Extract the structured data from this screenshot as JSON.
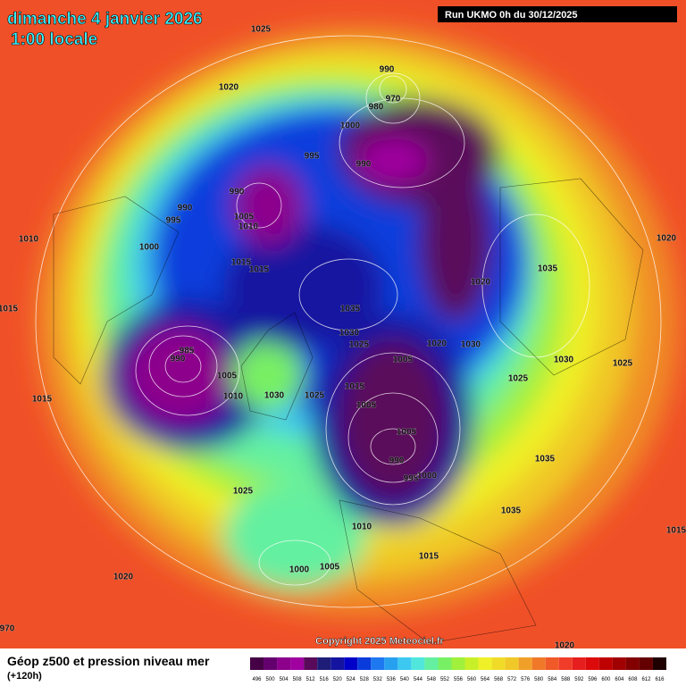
{
  "header": {
    "date": "dimanche 4 janvier 2026",
    "time": "1:00 locale",
    "run": "Run UKMO 0h du 30/12/2025"
  },
  "isobar_labels": [
    "1025",
    "1020",
    "990",
    "970",
    "980",
    "1000",
    "995",
    "990",
    "990",
    "990",
    "995",
    "1005",
    "1010",
    "1010",
    "1000",
    "1015",
    "1015",
    "1035",
    "1020",
    "1015",
    "1020",
    "1035",
    "1030",
    "1025",
    "1020",
    "1030",
    "985",
    "990",
    "1005",
    "1005",
    "1030",
    "1025",
    "1015",
    "1010",
    "1030",
    "1025",
    "1025",
    "1015",
    "1005",
    "1005",
    "1035",
    "990",
    "995",
    "1000",
    "1025",
    "1035",
    "1010",
    "1015",
    "1000",
    "1005",
    "1020",
    "1015",
    "1020",
    "970"
  ],
  "copyright": "Copyright 2025 Meteociel.fr",
  "legend": {
    "title": "Géop z500 et pression niveau mer",
    "lead": "(+120h)",
    "scale": [
      {
        "value": 496,
        "color": "#460046"
      },
      {
        "value": 500,
        "color": "#64006e"
      },
      {
        "value": 504,
        "color": "#8c008c"
      },
      {
        "value": 508,
        "color": "#a000a0"
      },
      {
        "value": 512,
        "color": "#5a0a5a"
      },
      {
        "value": 516,
        "color": "#1e1e78"
      },
      {
        "value": 520,
        "color": "#1414a0"
      },
      {
        "value": 524,
        "color": "#0000c8"
      },
      {
        "value": 528,
        "color": "#0a3cdc"
      },
      {
        "value": 532,
        "color": "#1e78f0"
      },
      {
        "value": 536,
        "color": "#28a0f0"
      },
      {
        "value": 540,
        "color": "#3cc8f0"
      },
      {
        "value": 544,
        "color": "#50e6dc"
      },
      {
        "value": 548,
        "color": "#64f0a0"
      },
      {
        "value": 552,
        "color": "#78f064"
      },
      {
        "value": 556,
        "color": "#a0f03c"
      },
      {
        "value": 560,
        "color": "#c8f028"
      },
      {
        "value": 564,
        "color": "#f0f028"
      },
      {
        "value": 568,
        "color": "#f0dc28"
      },
      {
        "value": 572,
        "color": "#f0c828"
      },
      {
        "value": 576,
        "color": "#f0a028"
      },
      {
        "value": 580,
        "color": "#f07828"
      },
      {
        "value": 584,
        "color": "#f05a28"
      },
      {
        "value": 588,
        "color": "#f03c28"
      },
      {
        "value": 592,
        "color": "#e61e1e"
      },
      {
        "value": 596,
        "color": "#dc0a0a"
      },
      {
        "value": 600,
        "color": "#be0000"
      },
      {
        "value": 604,
        "color": "#a00000"
      },
      {
        "value": 608,
        "color": "#820000"
      },
      {
        "value": 612,
        "color": "#640000"
      },
      {
        "value": 616,
        "color": "#1e0000"
      }
    ]
  }
}
